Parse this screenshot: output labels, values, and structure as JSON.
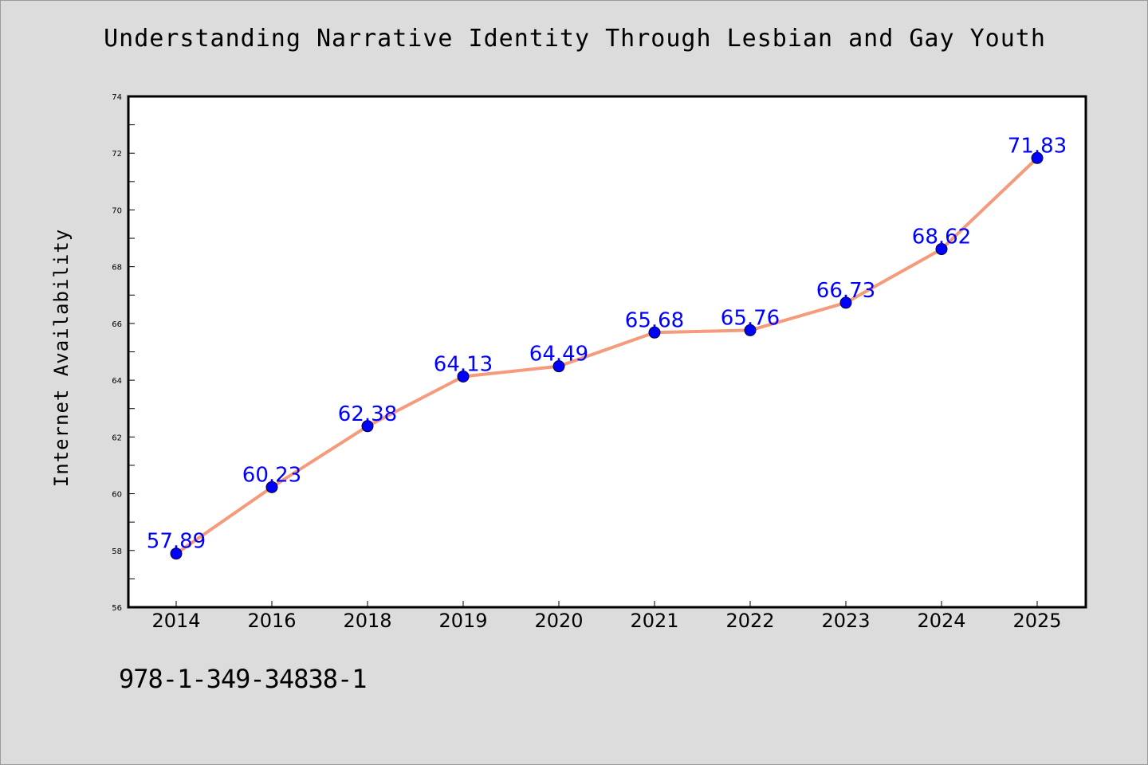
{
  "colors": {
    "background": "#dcdcdc",
    "plot_background": "#ffffff",
    "line": "#f59a7a",
    "marker": "#0000ff",
    "label": "#0000ff"
  },
  "footer": {
    "text": "978-1-349-34838-1"
  },
  "chart_data": {
    "type": "line",
    "title": "Understanding Narrative Identity Through Lesbian and Gay Youth",
    "xlabel": "",
    "ylabel": "Internet Availability",
    "categories": [
      "2014",
      "2016",
      "2018",
      "2019",
      "2020",
      "2021",
      "2022",
      "2023",
      "2024",
      "2025"
    ],
    "series": [
      {
        "values": [
          57.89,
          60.23,
          62.38,
          64.13,
          64.49,
          65.68,
          65.76,
          66.73,
          68.62,
          71.83
        ],
        "labels": [
          "57.89",
          "60.23",
          "62.38",
          "64.13",
          "64.49",
          "65.68",
          "65.76",
          "66.73",
          "68.62",
          "71.83"
        ]
      }
    ],
    "ylim": [
      56,
      74
    ],
    "yticks": [
      "56",
      "58",
      "60",
      "62",
      "64",
      "66",
      "68",
      "70",
      "72",
      "74"
    ],
    "grid": false,
    "legend": "none"
  }
}
